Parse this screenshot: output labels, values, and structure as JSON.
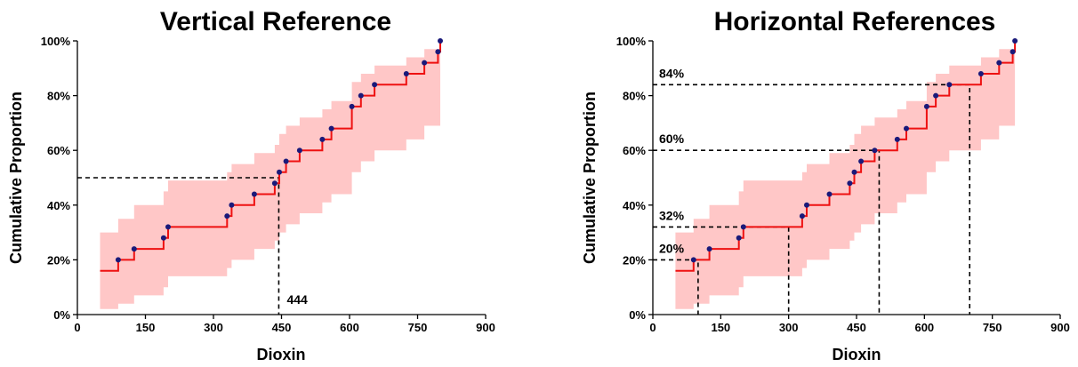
{
  "chart_data": [
    {
      "type": "line",
      "title": "Vertical Reference",
      "xlabel": "Dioxin",
      "ylabel": "Cumulative Proportion",
      "xlim": [
        0,
        900
      ],
      "ylim": [
        0,
        100
      ],
      "x_ticks": [
        0,
        150,
        300,
        450,
        600,
        750,
        900
      ],
      "y_ticks": [
        "0%",
        "20%",
        "40%",
        "60%",
        "80%",
        "100%"
      ],
      "grid": false,
      "colors": {
        "band": "#ffc7c7",
        "step": "#ee1111",
        "points": "#1a1a7a",
        "reference": "#000000"
      },
      "series": [
        {
          "type": "step-ecdf",
          "start_x": 50,
          "x": [
            90,
            125,
            190,
            200,
            330,
            340,
            390,
            435,
            445,
            460,
            490,
            540,
            560,
            605,
            625,
            655,
            725,
            765,
            795,
            800
          ],
          "y": [
            20,
            24,
            28,
            32,
            36,
            40,
            44,
            48,
            52,
            56,
            60,
            64,
            68,
            76,
            80,
            84,
            88,
            92,
            96,
            100
          ],
          "start_y": 16
        }
      ],
      "band": {
        "x_edges": [
          50,
          90,
          125,
          190,
          200,
          330,
          340,
          390,
          435,
          445,
          460,
          490,
          540,
          560,
          605,
          625,
          655,
          725,
          765,
          800
        ],
        "lower": [
          2,
          4,
          7,
          10,
          14,
          17,
          20,
          24,
          27,
          30,
          33,
          37,
          41,
          44,
          52,
          56,
          60,
          64,
          69,
          74
        ],
        "upper": [
          30,
          35,
          40,
          45,
          49,
          52,
          55,
          59,
          62,
          66,
          69,
          72,
          75,
          78,
          85,
          88,
          91,
          94,
          97,
          100
        ]
      },
      "references": [
        {
          "orientation": "vertical",
          "value_x": 444,
          "value_y": 50,
          "label": "444"
        }
      ]
    },
    {
      "type": "line",
      "title": "Horizontal References",
      "xlabel": "Dioxin",
      "ylabel": "Cumulative Proportion",
      "xlim": [
        0,
        900
      ],
      "ylim": [
        0,
        100
      ],
      "x_ticks": [
        0,
        150,
        300,
        450,
        600,
        750,
        900
      ],
      "y_ticks": [
        "0%",
        "20%",
        "40%",
        "60%",
        "80%",
        "100%"
      ],
      "grid": false,
      "colors": {
        "band": "#ffc7c7",
        "step": "#ee1111",
        "points": "#1a1a7a",
        "reference": "#000000"
      },
      "series": [
        {
          "type": "step-ecdf",
          "start_x": 50,
          "x": [
            90,
            125,
            190,
            200,
            330,
            340,
            390,
            435,
            445,
            460,
            490,
            540,
            560,
            605,
            625,
            655,
            725,
            765,
            795,
            800
          ],
          "y": [
            20,
            24,
            28,
            32,
            36,
            40,
            44,
            48,
            52,
            56,
            60,
            64,
            68,
            76,
            80,
            84,
            88,
            92,
            96,
            100
          ],
          "start_y": 16
        }
      ],
      "band": {
        "x_edges": [
          50,
          90,
          125,
          190,
          200,
          330,
          340,
          390,
          435,
          445,
          460,
          490,
          540,
          560,
          605,
          625,
          655,
          725,
          765,
          800
        ],
        "lower": [
          2,
          4,
          7,
          10,
          14,
          17,
          20,
          24,
          27,
          30,
          33,
          37,
          41,
          44,
          52,
          56,
          60,
          64,
          69,
          74
        ],
        "upper": [
          30,
          35,
          40,
          45,
          49,
          52,
          55,
          59,
          62,
          66,
          69,
          72,
          75,
          78,
          85,
          88,
          91,
          94,
          97,
          100
        ]
      },
      "references": [
        {
          "orientation": "horizontal",
          "value_x": 100,
          "value_y": 20,
          "label": "20%"
        },
        {
          "orientation": "horizontal",
          "value_x": 300,
          "value_y": 32,
          "label": "32%"
        },
        {
          "orientation": "horizontal",
          "value_x": 500,
          "value_y": 60,
          "label": "60%"
        },
        {
          "orientation": "horizontal",
          "value_x": 700,
          "value_y": 84,
          "label": "84%"
        }
      ]
    }
  ]
}
